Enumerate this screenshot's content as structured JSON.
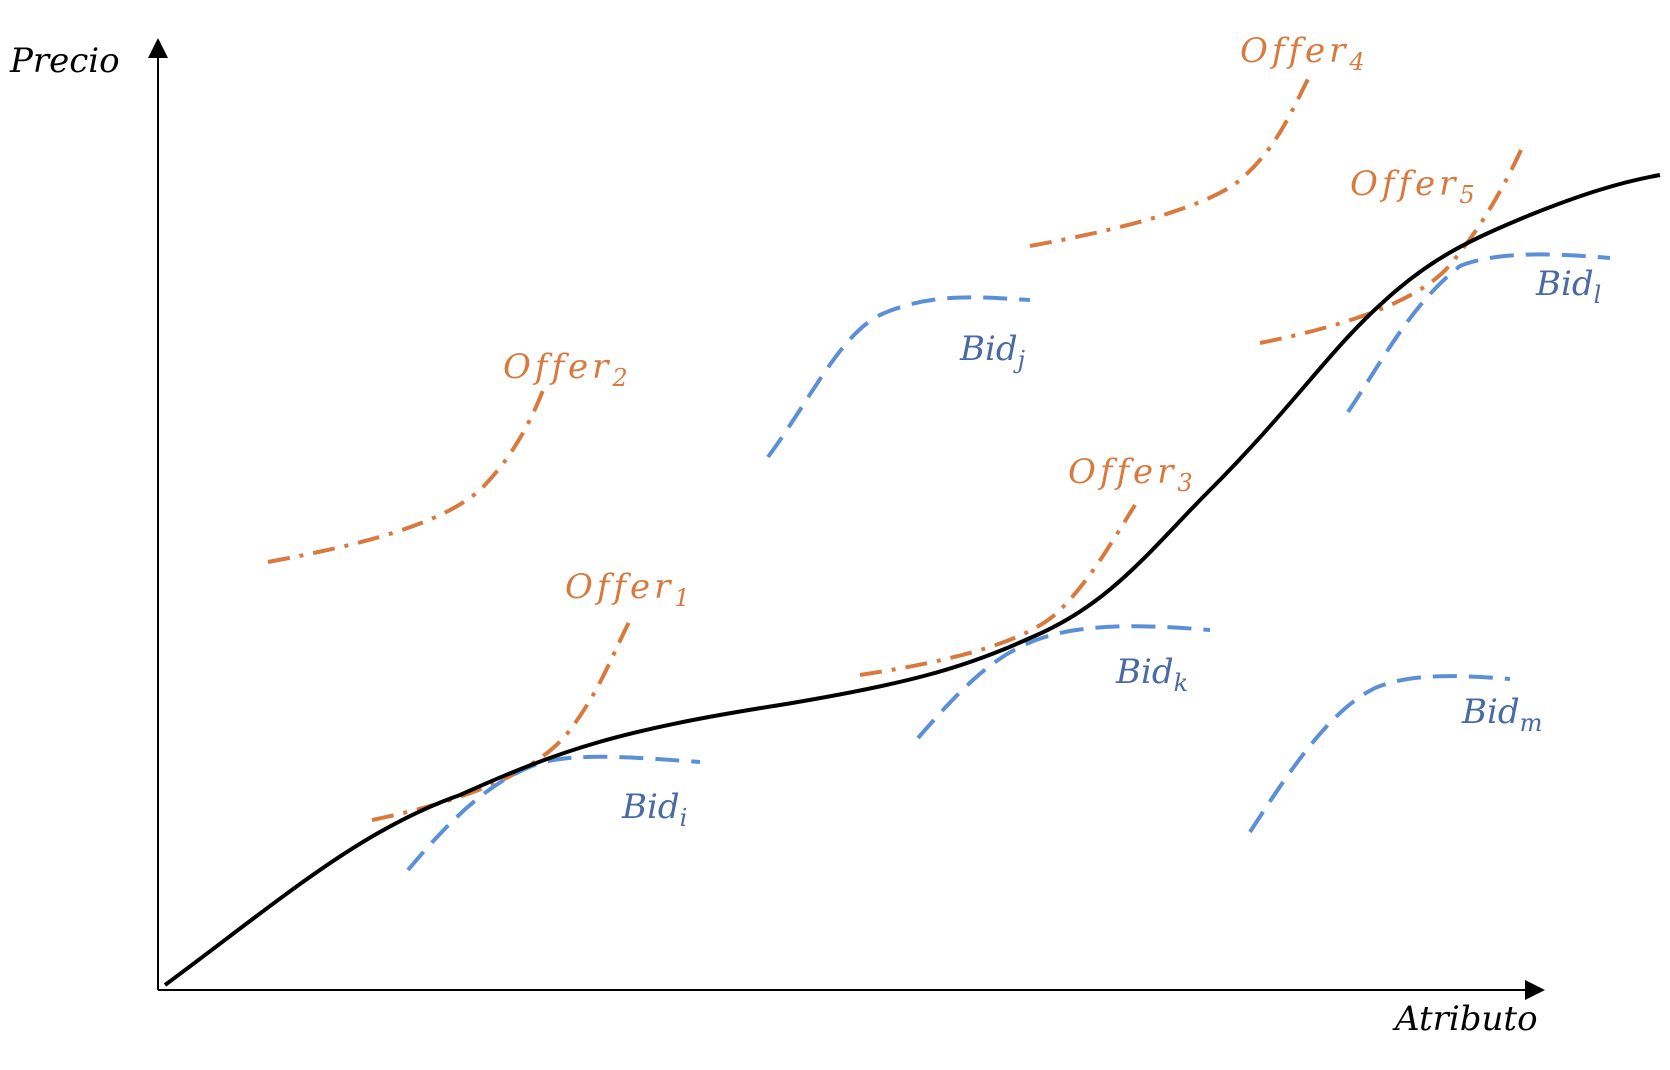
{
  "axes": {
    "y_title": "Precio",
    "x_title": "Atributo"
  },
  "colors": {
    "offer": "#d87a3e",
    "bid": "#5b8fd6",
    "bid_label": "#4a6aa5",
    "equilibrium": "#000000",
    "axis": "#000000"
  },
  "offers": [
    {
      "base": "Offer",
      "sub": "1"
    },
    {
      "base": "Offer",
      "sub": "2"
    },
    {
      "base": "Offer",
      "sub": "3"
    },
    {
      "base": "Offer",
      "sub": "4"
    },
    {
      "base": "Offer",
      "sub": "5"
    }
  ],
  "bids": [
    {
      "base": "Bid",
      "sub": "i"
    },
    {
      "base": "Bid",
      "sub": "j"
    },
    {
      "base": "Bid",
      "sub": "k"
    },
    {
      "base": "Bid",
      "sub": "l"
    },
    {
      "base": "Bid",
      "sub": "m"
    }
  ]
}
